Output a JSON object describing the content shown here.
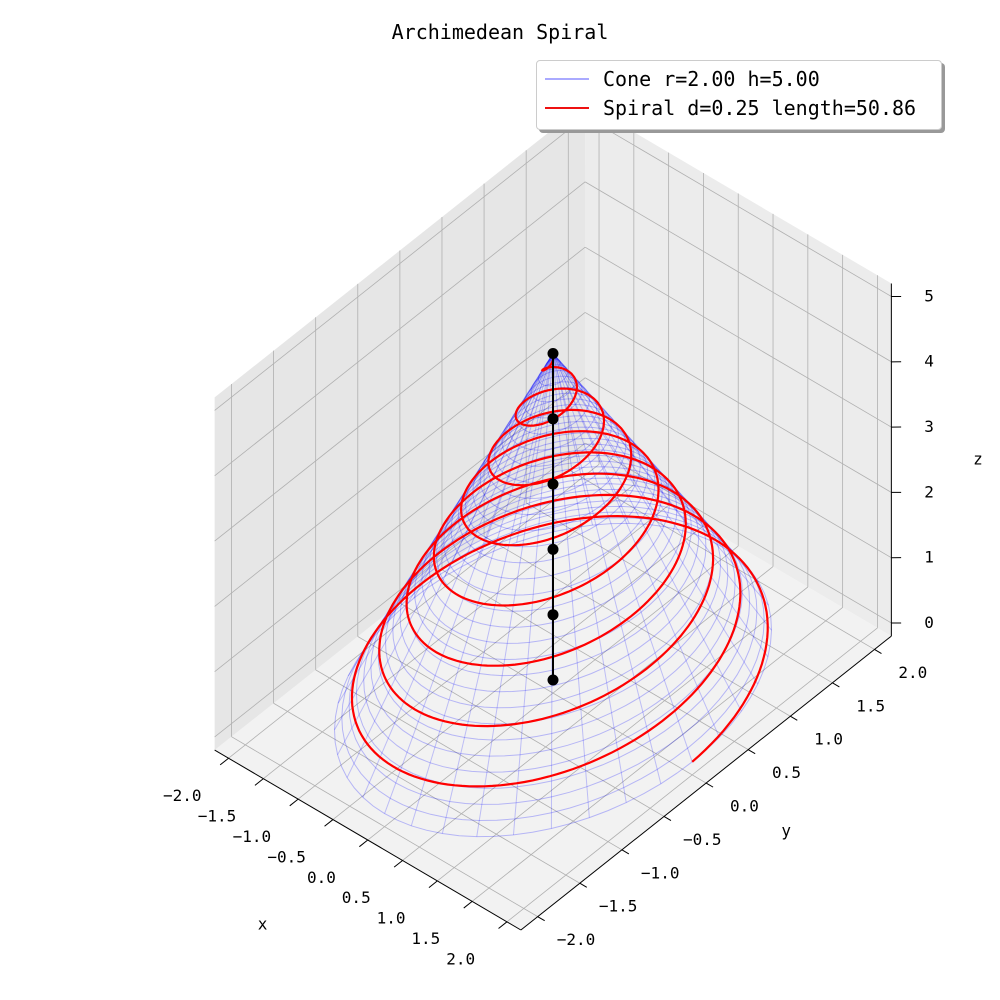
{
  "chart_data": {
    "type": "line",
    "title": "Archimedean Spiral",
    "xlabel": "x",
    "ylabel": "y",
    "zlabel": "z",
    "xlim": [
      -2.0,
      2.0
    ],
    "ylim": [
      -2.0,
      2.0
    ],
    "zlim": [
      0,
      5
    ],
    "x_ticks": [
      "−2.0",
      "−1.5",
      "−1.0",
      "−0.5",
      "0.0",
      "0.5",
      "1.0",
      "1.5",
      "2.0"
    ],
    "y_ticks": [
      "−2.0",
      "−1.5",
      "−1.0",
      "−0.5",
      "0.0",
      "0.5",
      "1.0",
      "1.5",
      "2.0"
    ],
    "z_ticks": [
      "0",
      "1",
      "2",
      "3",
      "4",
      "5"
    ],
    "grid": true,
    "legend_placement": "top-right",
    "series": [
      {
        "name": "Cone r=2.00 h=5.00",
        "kind": "surface-wireframe",
        "radius": 2.0,
        "height": 5.0,
        "color": "#0000ff"
      },
      {
        "name": "Spiral d=0.25 length=50.86",
        "kind": "helix-on-cone",
        "radius": 2.0,
        "height": 5.0,
        "turns": 8,
        "color": "#ff0000"
      },
      {
        "name": "",
        "kind": "axis-markers",
        "x": [
          0,
          0,
          0,
          0,
          0,
          0
        ],
        "y": [
          0,
          0,
          0,
          0,
          0,
          0
        ],
        "z": [
          0,
          1,
          2,
          3,
          4,
          5
        ],
        "color": "#000000"
      }
    ]
  },
  "legend": {
    "entries": [
      {
        "label": "Cone r=2.00 h=5.00",
        "color": "#aaaaff"
      },
      {
        "label": "Spiral d=0.25 length=50.86",
        "color": "#ee1111"
      }
    ]
  }
}
